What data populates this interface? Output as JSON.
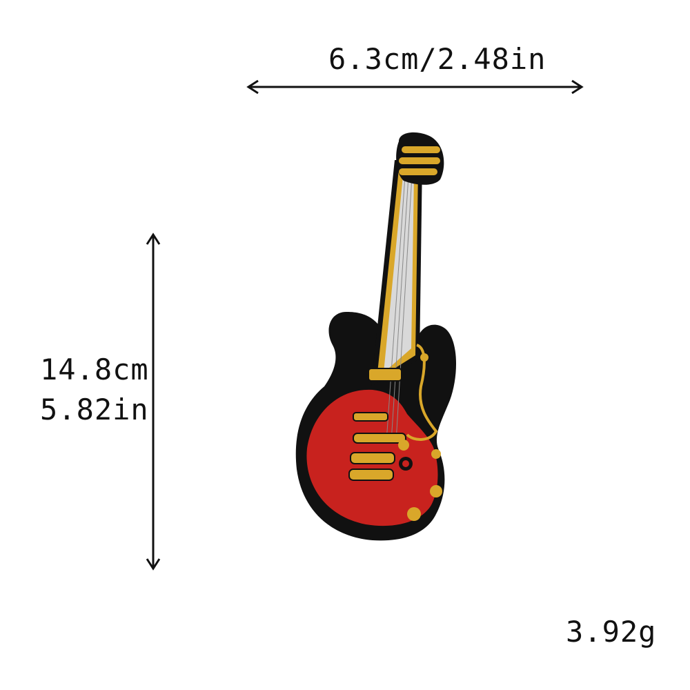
{
  "dimensions": {
    "width_text": "6.3cm/2.48in",
    "height_cm_text": "14.8cm",
    "height_in_text": "5.82in",
    "weight_text": "3.92g"
  },
  "product": {
    "image_icon": "guitar-patch-icon",
    "colors": {
      "body_red": "#c8221e",
      "border_black": "#111111",
      "gold": "#d9a72a",
      "fret_silver": "#d9d9d9"
    }
  }
}
